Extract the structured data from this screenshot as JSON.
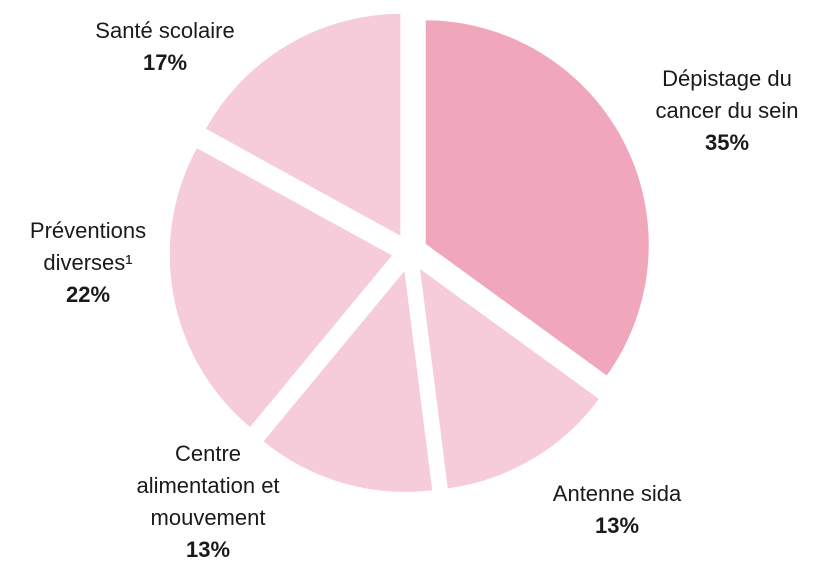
{
  "chart_data": {
    "type": "pie",
    "categories": [
      "Dépistage du cancer du sein",
      "Antenne sida",
      "Centre alimentation et mouvement",
      "Préventions diverses¹",
      "Santé scolaire"
    ],
    "values": [
      35,
      13,
      13,
      22,
      17
    ],
    "value_labels": [
      "35%",
      "13%",
      "13%",
      "22%",
      "17%"
    ],
    "colors": [
      "#f0a7bc",
      "#f7ccda",
      "#f7ccda",
      "#f7ccda",
      "#f7ccda"
    ]
  }
}
